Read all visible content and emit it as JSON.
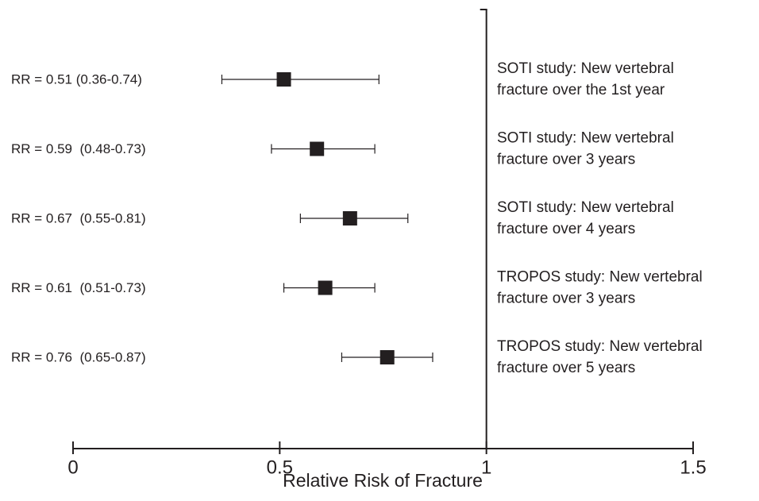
{
  "chart_data": {
    "type": "forest",
    "xlabel": "Relative Risk of Fracture",
    "categories": [
      [
        "SOTI study: New vertebral",
        "fracture over the 1st year"
      ],
      [
        "SOTI study: New vertebral",
        "fracture over 3 years"
      ],
      [
        "SOTI study: New vertebral",
        "fracture over 4 years"
      ],
      [
        "TROPOS study: New vertebral",
        "fracture over 3 years"
      ],
      [
        "TROPOS study: New vertebral",
        "fracture over 5 years"
      ]
    ],
    "values": [
      0.51,
      0.59,
      0.67,
      0.61,
      0.76
    ],
    "low": [
      0.36,
      0.48,
      0.55,
      0.51,
      0.65
    ],
    "high": [
      0.74,
      0.73,
      0.81,
      0.73,
      0.87
    ],
    "value_labels": [
      "RR = 0.51 (0.36-0.74)",
      "RR = 0.59  (0.48-0.73)",
      "RR = 0.67  (0.55-0.81)",
      "RR = 0.61  (0.51-0.73)",
      "RR = 0.76  (0.65-0.87)"
    ],
    "reference_line": 1,
    "xlim": [
      0,
      1.5
    ],
    "xticks": [
      0,
      0.5,
      1,
      1.5
    ],
    "color": "#231f20"
  }
}
